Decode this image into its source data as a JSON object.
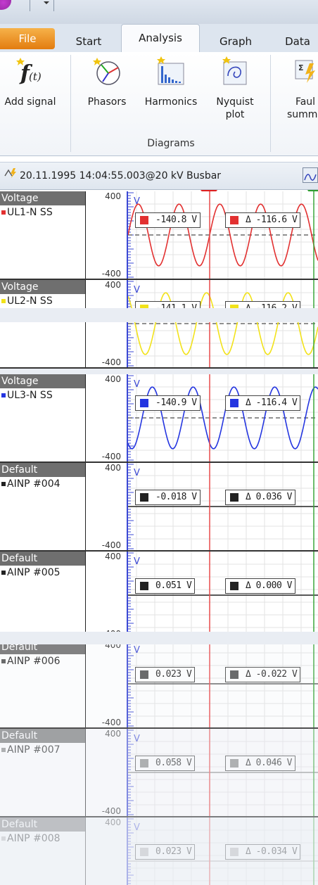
{
  "ribbon": {
    "tabs": [
      "File",
      "Start",
      "Analysis",
      "Graph",
      "Data"
    ],
    "buttons": {
      "add_signal": "Add signal",
      "phasors": "Phasors",
      "harmonics": "Harmonics",
      "nyquist": "Nyquist\nplot",
      "fault": "Faul\nsumma"
    },
    "group_label": "Diagrams"
  },
  "infobar": {
    "record": "20.11.1995 14:04:55.003@20 kV Busbar"
  },
  "axis": {
    "top": "400",
    "bottom": "-400",
    "unit": "V"
  },
  "rows": [
    {
      "group": "Voltage",
      "channel": "UL1-N SS",
      "color": "#e23030",
      "value": "-140.8 V",
      "delta": "Δ -116.6 V"
    },
    {
      "group": "Voltage",
      "channel": "UL2-N SS",
      "color": "#f2e21a",
      "value": "-141.1 V",
      "delta": "Δ -116.2 V"
    },
    {
      "group": "Voltage",
      "channel": "UL3-N SS",
      "color": "#2435e0",
      "value": "-140.9 V",
      "delta": "Δ -116.4 V"
    },
    {
      "group": "Default",
      "channel": "AINP #004",
      "color": "#222222",
      "value": "-0.018 V",
      "delta": "Δ 0.036 V"
    },
    {
      "group": "Default",
      "channel": "AINP #005",
      "color": "#222222",
      "value": "0.051 V",
      "delta": "Δ 0.000 V"
    },
    {
      "group": "Default",
      "channel": "AINP #006",
      "color": "#555555",
      "value": "0.023 V",
      "delta": "Δ -0.022 V"
    },
    {
      "group": "Default",
      "channel": "AINP #007",
      "color": "#888888",
      "value": "0.058 V",
      "delta": "Δ 0.046 V"
    },
    {
      "group": "Default",
      "channel": "AINP #008",
      "color": "#b4b4b4",
      "value": "0.023 V",
      "delta": "Δ -0.034 V"
    }
  ]
}
